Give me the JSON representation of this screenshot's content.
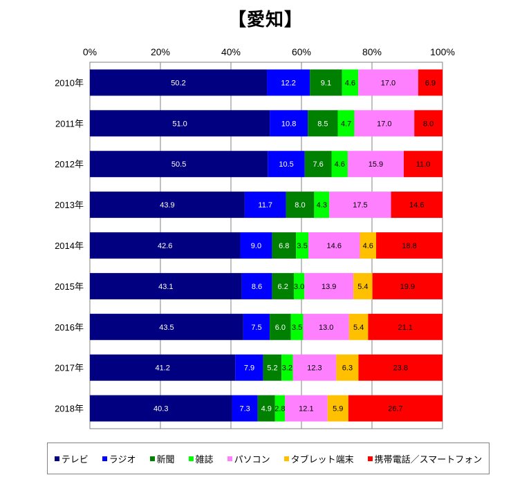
{
  "chart_data": {
    "type": "bar",
    "orientation": "horizontal-stacked-100",
    "title": "【愛知】",
    "categories": [
      "2010年",
      "2011年",
      "2012年",
      "2013年",
      "2014年",
      "2015年",
      "2016年",
      "2017年",
      "2018年"
    ],
    "x_ticks": [
      "0%",
      "20%",
      "40%",
      "60%",
      "80%",
      "100%"
    ],
    "xlim": [
      0,
      100
    ],
    "grid": true,
    "legend_position": "bottom",
    "series": [
      {
        "name": "テレビ",
        "color": "#000080",
        "label_color": "#ffffff",
        "values": [
          50.2,
          51.0,
          50.5,
          43.9,
          42.6,
          43.1,
          43.5,
          41.2,
          40.3
        ],
        "labels": [
          "50.2",
          "51.0",
          "50.5",
          "43.9",
          "42.6",
          "43.1",
          "43.5",
          "41.2",
          "40.3"
        ]
      },
      {
        "name": "ラジオ",
        "color": "#0000ff",
        "label_color": "#ffffff",
        "values": [
          12.2,
          10.8,
          10.5,
          11.7,
          9.0,
          8.6,
          7.5,
          7.9,
          7.3
        ],
        "labels": [
          "12.2",
          "10.8",
          "10.5",
          "11.7",
          "9.0",
          "8.6",
          "7.5",
          "7.9",
          "7.3"
        ]
      },
      {
        "name": "新聞",
        "color": "#008000",
        "label_color": "#ffffff",
        "values": [
          9.1,
          8.5,
          7.6,
          8.0,
          6.8,
          6.2,
          6.0,
          5.2,
          4.9
        ],
        "labels": [
          "9.1",
          "8.5",
          "7.6",
          "8.0",
          "6.8",
          "6.2",
          "6.0",
          "5.2",
          "4.9"
        ]
      },
      {
        "name": "雑誌",
        "color": "#00ff00",
        "label_color": "#000000",
        "values": [
          4.6,
          4.7,
          4.6,
          4.3,
          3.5,
          3.0,
          3.5,
          3.2,
          2.8
        ],
        "labels": [
          "4.6",
          "4.7",
          "4.6",
          "4.3",
          "3.5",
          "3.0",
          "3.5",
          "3.2",
          "2.8"
        ]
      },
      {
        "name": "パソコン",
        "color": "#ff80ff",
        "label_color": "#000000",
        "values": [
          17.0,
          17.0,
          15.9,
          17.5,
          14.6,
          13.9,
          13.0,
          12.3,
          12.1
        ],
        "labels": [
          "17.0",
          "17.0",
          "15.9",
          "17.5",
          "14.6",
          "13.9",
          "13.0",
          "12.3",
          "12.1"
        ]
      },
      {
        "name": "タブレット端末",
        "color": "#ffc000",
        "label_color": "#000000",
        "values": [
          0,
          0,
          0,
          0,
          4.6,
          5.4,
          5.4,
          6.3,
          5.9
        ],
        "labels": [
          "",
          "",
          "",
          "",
          "4.6",
          "5.4",
          "5.4",
          "6.3",
          "5.9"
        ]
      },
      {
        "name": "携帯電話／スマートフォン",
        "color": "#ff0000",
        "label_color": "#000000",
        "values": [
          6.9,
          8.0,
          11.0,
          14.6,
          18.8,
          19.9,
          21.1,
          23.8,
          26.7
        ],
        "labels": [
          "6.9",
          "8.0",
          "11.0",
          "14.6",
          "18.8",
          "19.9",
          "21.1",
          "23.8",
          "26.7"
        ]
      }
    ]
  }
}
